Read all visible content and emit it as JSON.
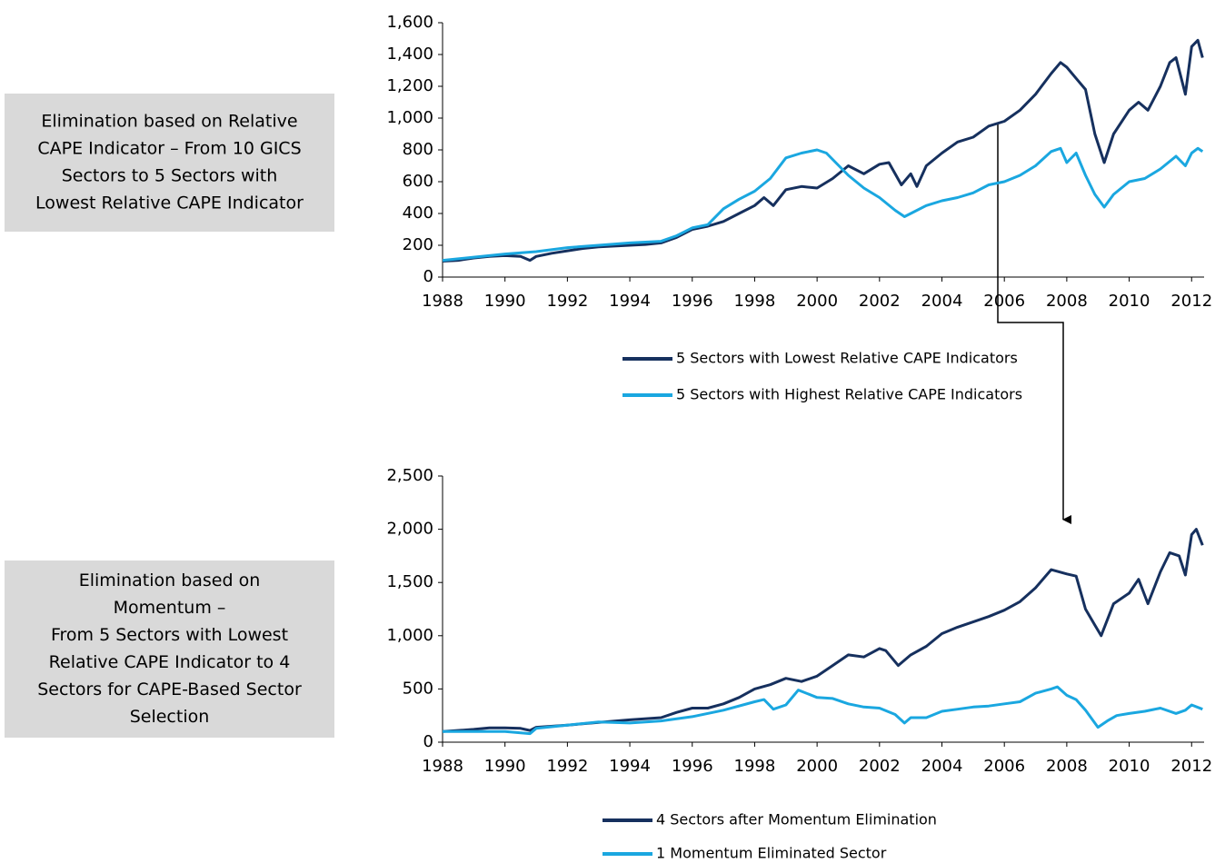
{
  "chart_data": [
    {
      "type": "line",
      "annotation": [
        "Elimination based on Relative",
        "CAPE Indicator – From 10 GICS",
        "Sectors to 5 Sectors with",
        "Lowest Relative CAPE Indicator"
      ],
      "xlim": [
        1988,
        2012.4
      ],
      "ylim": [
        0,
        1600
      ],
      "xticks": [
        1988,
        1990,
        1992,
        1994,
        1996,
        1998,
        2000,
        2002,
        2004,
        2006,
        2008,
        2010,
        2012
      ],
      "yticks": [
        0,
        200,
        400,
        600,
        800,
        {
          "value": 1000,
          "label": "1,000"
        },
        {
          "value": 1200,
          "label": "1,200"
        },
        {
          "value": 1400,
          "label": "1,400"
        },
        {
          "value": 1600,
          "label": "1,600"
        }
      ],
      "legend": "bottom",
      "series": [
        {
          "name": "5 Sectors with Lowest Relative CAPE Indicators",
          "color": "#16305e",
          "x": [
            1988,
            1988.5,
            1989,
            1989.5,
            1990,
            1990.5,
            1990.8,
            1991,
            1991.5,
            1992,
            1992.5,
            1993,
            1993.5,
            1994,
            1994.5,
            1995,
            1995.5,
            1996,
            1996.5,
            1997,
            1997.5,
            1998,
            1998.3,
            1998.6,
            1999,
            1999.5,
            2000,
            2000.5,
            2001,
            2001.5,
            2002,
            2002.3,
            2002.7,
            2003,
            2003.2,
            2003.5,
            2004,
            2004.5,
            2005,
            2005.5,
            2006,
            2006.5,
            2007,
            2007.5,
            2007.8,
            2008,
            2008.3,
            2008.6,
            2008.9,
            2009.2,
            2009.5,
            2010,
            2010.3,
            2010.6,
            2011,
            2011.3,
            2011.5,
            2011.8,
            2012,
            2012.2,
            2012.35
          ],
          "values": [
            100,
            105,
            120,
            130,
            135,
            130,
            105,
            130,
            150,
            165,
            180,
            190,
            195,
            200,
            205,
            215,
            250,
            300,
            320,
            350,
            400,
            450,
            500,
            450,
            550,
            570,
            560,
            620,
            700,
            650,
            710,
            720,
            580,
            650,
            570,
            700,
            780,
            850,
            880,
            950,
            980,
            1050,
            1150,
            1280,
            1350,
            1320,
            1250,
            1180,
            900,
            720,
            900,
            1050,
            1100,
            1050,
            1200,
            1350,
            1380,
            1150,
            1450,
            1490,
            1380
          ]
        },
        {
          "name": "5 Sectors with Highest Relative CAPE Indicators",
          "color": "#1aa7e0",
          "x": [
            1988,
            1989,
            1990,
            1991,
            1992,
            1993,
            1994,
            1995,
            1995.5,
            1996,
            1996.5,
            1997,
            1997.5,
            1998,
            1998.5,
            1999,
            1999.5,
            2000,
            2000.3,
            2000.6,
            2001,
            2001.5,
            2002,
            2002.5,
            2002.8,
            2003,
            2003.5,
            2004,
            2004.5,
            2005,
            2005.5,
            2006,
            2006.5,
            2007,
            2007.5,
            2007.8,
            2008,
            2008.3,
            2008.6,
            2008.9,
            2009.2,
            2009.5,
            2010,
            2010.5,
            2011,
            2011.5,
            2011.8,
            2012,
            2012.2,
            2012.35
          ],
          "values": [
            105,
            125,
            145,
            160,
            185,
            200,
            215,
            225,
            260,
            310,
            330,
            430,
            490,
            540,
            620,
            750,
            780,
            800,
            780,
            720,
            640,
            560,
            500,
            420,
            380,
            400,
            450,
            480,
            500,
            530,
            580,
            600,
            640,
            700,
            790,
            810,
            720,
            780,
            640,
            520,
            440,
            520,
            600,
            620,
            680,
            760,
            700,
            780,
            810,
            790
          ]
        }
      ]
    },
    {
      "type": "line",
      "annotation": [
        "Elimination based on",
        "Momentum –",
        "From 5 Sectors with Lowest",
        "Relative CAPE Indicator to 4",
        "Sectors for CAPE-Based Sector",
        "Selection"
      ],
      "xlim": [
        1988,
        2012.4
      ],
      "ylim": [
        0,
        2500
      ],
      "xticks": [
        1988,
        1990,
        1992,
        1994,
        1996,
        1998,
        2000,
        2002,
        2004,
        2006,
        2008,
        2010,
        2012
      ],
      "yticks": [
        0,
        500,
        {
          "value": 1000,
          "label": "1,000"
        },
        {
          "value": 1500,
          "label": "1,500"
        },
        {
          "value": 2000,
          "label": "2,000"
        },
        {
          "value": 2500,
          "label": "2,500"
        }
      ],
      "legend": "bottom",
      "series": [
        {
          "name": "4 Sectors after Momentum Elimination",
          "color": "#16305e",
          "x": [
            1988,
            1989,
            1989.5,
            1990,
            1990.5,
            1990.8,
            1991,
            1992,
            1993,
            1994,
            1995,
            1995.5,
            1996,
            1996.5,
            1997,
            1997.5,
            1998,
            1998.5,
            1999,
            1999.5,
            2000,
            2000.5,
            2001,
            2001.5,
            2002,
            2002.2,
            2002.6,
            2003,
            2003.5,
            2004,
            2004.5,
            2005,
            2005.5,
            2006,
            2006.5,
            2007,
            2007.5,
            2008,
            2008.3,
            2008.6,
            2008.9,
            2009.1,
            2009.5,
            2010,
            2010.3,
            2010.6,
            2011,
            2011.3,
            2011.6,
            2011.8,
            2012,
            2012.15,
            2012.35
          ],
          "values": [
            100,
            120,
            135,
            135,
            130,
            110,
            140,
            160,
            185,
            210,
            230,
            280,
            320,
            320,
            360,
            420,
            500,
            540,
            600,
            570,
            620,
            720,
            820,
            800,
            880,
            860,
            720,
            820,
            900,
            1020,
            1080,
            1130,
            1180,
            1240,
            1320,
            1450,
            1620,
            1580,
            1560,
            1250,
            1100,
            1000,
            1300,
            1400,
            1530,
            1300,
            1600,
            1780,
            1750,
            1570,
            1950,
            2000,
            1850
          ]
        },
        {
          "name": "1 Momentum Eliminated Sector",
          "color": "#1aa7e0",
          "x": [
            1988,
            1989,
            1990,
            1990.8,
            1991,
            1992,
            1993,
            1994,
            1995,
            1996,
            1997,
            1998,
            1998.3,
            1998.6,
            1999,
            1999.4,
            2000,
            2000.5,
            2001,
            2001.5,
            2002,
            2002.5,
            2002.8,
            2003,
            2003.5,
            2004,
            2004.5,
            2005,
            2005.5,
            2006,
            2006.5,
            2007,
            2007.5,
            2007.7,
            2008,
            2008.3,
            2008.6,
            2009,
            2009.3,
            2009.6,
            2010,
            2010.5,
            2011,
            2011.5,
            2011.8,
            2012,
            2012.35
          ],
          "values": [
            100,
            100,
            100,
            80,
            130,
            160,
            190,
            180,
            200,
            240,
            300,
            380,
            400,
            310,
            350,
            490,
            420,
            410,
            360,
            330,
            320,
            260,
            180,
            230,
            230,
            290,
            310,
            330,
            340,
            360,
            380,
            460,
            500,
            520,
            440,
            400,
            300,
            140,
            200,
            250,
            270,
            290,
            320,
            270,
            300,
            350,
            310
          ]
        }
      ]
    }
  ]
}
